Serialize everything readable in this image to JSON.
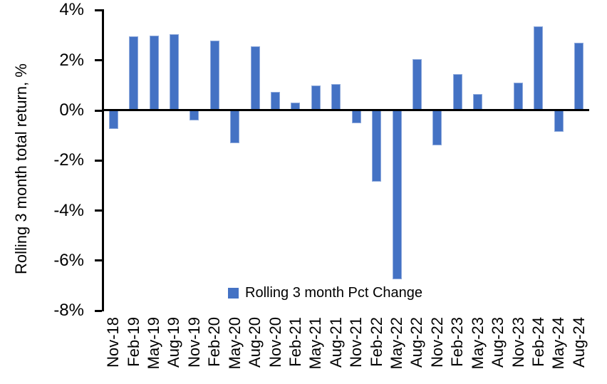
{
  "chart_data": {
    "type": "bar",
    "title": "",
    "xlabel": "",
    "ylabel": "Rolling 3 month total return, %",
    "categories": [
      "Nov-18",
      "Feb-19",
      "May-19",
      "Aug-19",
      "Nov-19",
      "Feb-20",
      "May-20",
      "Aug-20",
      "Nov-20",
      "Feb-21",
      "May-21",
      "Aug-21",
      "Nov-21",
      "Feb-22",
      "May-22",
      "Aug-22",
      "Nov-22",
      "Feb-23",
      "May-23",
      "Aug-23",
      "Nov-23",
      "Feb-24",
      "May-24",
      "Aug-24"
    ],
    "values": [
      -0.75,
      2.95,
      3.0,
      3.05,
      -0.4,
      2.8,
      -1.3,
      2.55,
      0.75,
      0.3,
      1.0,
      1.05,
      -0.5,
      -2.85,
      -6.75,
      2.05,
      -1.4,
      1.45,
      0.65,
      0.0,
      1.1,
      3.35,
      -0.85,
      2.7
    ],
    "ylim": [
      -8,
      4
    ],
    "ytick_step": 2,
    "ytick_labels": [
      "4%",
      "2%",
      "0%",
      "-2%",
      "-4%",
      "-6%",
      "-8%"
    ],
    "ytick_values": [
      4,
      2,
      0,
      -2,
      -4,
      -6,
      -8
    ],
    "grid": false,
    "legend_position": "bottom",
    "legend": [
      {
        "label": "Rolling 3 month Pct Change",
        "color": "#4472C4"
      }
    ],
    "bar_color": "#4472C4",
    "bar_border_color": "#8FAADC",
    "axis_color": "#000000"
  }
}
